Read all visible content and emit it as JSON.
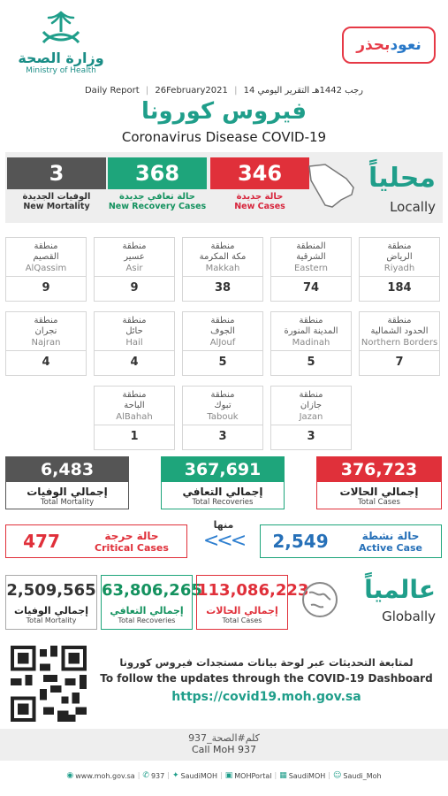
{
  "header": {
    "moh_ar": "وزارة الصحة",
    "moh_en": "Ministry of Health",
    "campaign_part1": "نعود",
    "campaign_part2": "بحذر",
    "report_label_ar": "التقرير اليومي",
    "hijri_date": "14 رجب 1442هـ",
    "greg_date": "26February2021",
    "report_label_en": "Daily Report",
    "title_ar": "فيروس كورونا",
    "title_en": "Coronavirus Disease COVID-19"
  },
  "local": {
    "label_ar": "محلياً",
    "label_en": "Locally",
    "new_cases": {
      "value": "346",
      "ar": "حالة جديدة",
      "en": "New Cases"
    },
    "new_recovery": {
      "value": "368",
      "ar": "حالة تعافي جديدة",
      "en": "New Recovery Cases"
    },
    "new_mortality": {
      "value": "3",
      "ar": "الوفيات الجديدة",
      "en": "New Mortality"
    }
  },
  "regions": [
    {
      "ar1": "منطقة",
      "ar2": "الرياض",
      "en": "Riyadh",
      "value": "184"
    },
    {
      "ar1": "المنطقة",
      "ar2": "الشرقية",
      "en": "Eastern",
      "value": "74"
    },
    {
      "ar1": "منطقة",
      "ar2": "مكة المكرمة",
      "en": "Makkah",
      "value": "38"
    },
    {
      "ar1": "منطقة",
      "ar2": "عسير",
      "en": "Asir",
      "value": "9"
    },
    {
      "ar1": "منطقة",
      "ar2": "القصيم",
      "en": "AlQassim",
      "value": "9"
    },
    {
      "ar1": "منطقة",
      "ar2": "الحدود الشمالية",
      "en": "Northern Borders",
      "value": "7"
    },
    {
      "ar1": "منطقة",
      "ar2": "المدينة المنورة",
      "en": "Madinah",
      "value": "5"
    },
    {
      "ar1": "منطقة",
      "ar2": "الجوف",
      "en": "AlJouf",
      "value": "5"
    },
    {
      "ar1": "منطقة",
      "ar2": "حائل",
      "en": "Hail",
      "value": "4"
    },
    {
      "ar1": "منطقة",
      "ar2": "نجران",
      "en": "Najran",
      "value": "4"
    },
    {
      "ar1": "منطقة",
      "ar2": "جازان",
      "en": "Jazan",
      "value": "3"
    },
    {
      "ar1": "منطقة",
      "ar2": "تبوك",
      "en": "Tabouk",
      "value": "3"
    },
    {
      "ar1": "منطقة",
      "ar2": "الباحة",
      "en": "AlBahah",
      "value": "1"
    }
  ],
  "totals": {
    "cases": {
      "value": "376,723",
      "ar": "إجمالي الحالات",
      "en": "Total Cases"
    },
    "recoveries": {
      "value": "367,691",
      "ar": "إجمالي التعافي",
      "en": "Total Recoveries"
    },
    "mortality": {
      "value": "6,483",
      "ar": "إجمالي الوفيات",
      "en": "Total Mortality"
    }
  },
  "status": {
    "of_which_ar": "منها",
    "arrows": "<<<",
    "active": {
      "value": "2,549",
      "ar": "حالة نشطة",
      "en": "Active Case"
    },
    "critical": {
      "value": "477",
      "ar": "حالة حرجة",
      "en": "Critical Cases"
    }
  },
  "global": {
    "label_ar": "عالمياً",
    "label_en": "Globally",
    "cases": {
      "value": "113,086,223",
      "ar": "إجمالي الحالات",
      "en": "Total Cases"
    },
    "recoveries": {
      "value": "63,806,265",
      "ar": "إجمالي التعافي",
      "en": "Total Recoveries"
    },
    "mortality": {
      "value": "2,509,565",
      "ar": "إجمالي الوفيات",
      "en": "Total Mortality"
    }
  },
  "dashboard": {
    "text_ar": "لمتابعة التحديثات عبر لوحة بيانات مستجدات فيروس كورونا",
    "text_en": "To follow the updates through the COVID-19 Dashboard",
    "url": "https://covid19.moh.gov.sa"
  },
  "call": {
    "ar": "كلم#الصحة_937",
    "en": "Call MoH 937"
  },
  "footer": {
    "website": "www.moh.gov.sa",
    "phone": "937",
    "twitter": "SaudiMOH",
    "portal": "MOHPortal",
    "facebook": "SaudiMOH",
    "snapchat": "Saudi_Moh"
  },
  "colors": {
    "teal": "#1f9e8a",
    "red": "#e0303a",
    "green": "#1ea57b",
    "gray": "#555555",
    "blue": "#2670b8"
  }
}
